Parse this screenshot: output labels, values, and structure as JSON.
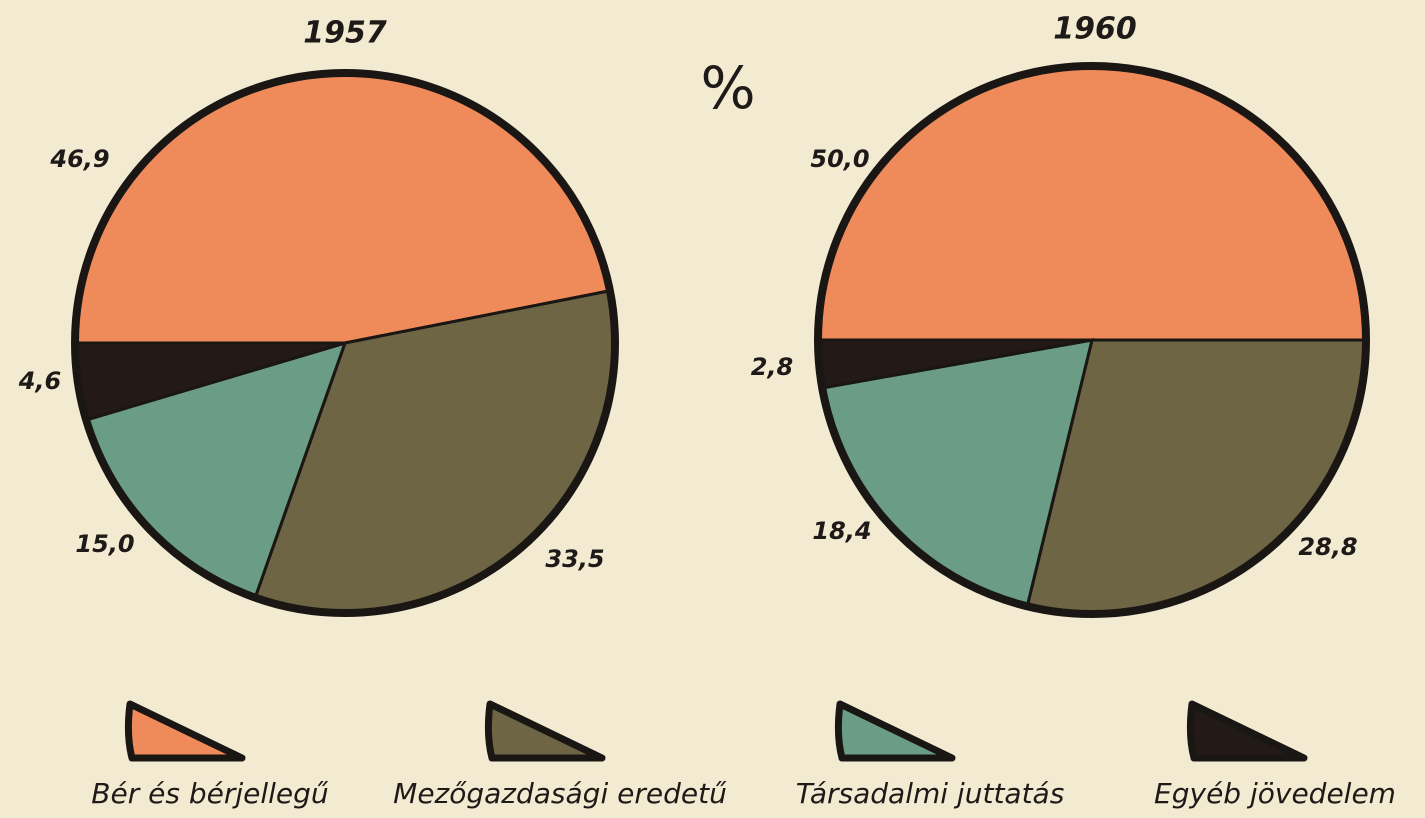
{
  "unit": "%",
  "legend": {
    "labels": [
      "Bér és bérjellegű",
      "Mezőgazdasági eredetű",
      "Társadalmi juttatás",
      "Egyéb jövedelem"
    ],
    "colors": [
      "#ef8a5b",
      "#6d6543",
      "#6b9d86",
      "#231a17"
    ]
  },
  "chart_data": [
    {
      "type": "pie",
      "title": "1957",
      "values": [
        46.9,
        33.5,
        15.0,
        4.6
      ],
      "value_labels": [
        "46,9",
        "33,5",
        "15,0",
        "4,6"
      ]
    },
    {
      "type": "pie",
      "title": "1960",
      "values": [
        50.0,
        28.8,
        18.4,
        2.8
      ],
      "value_labels": [
        "50,0",
        "28,8",
        "18,4",
        "2,8"
      ]
    }
  ]
}
